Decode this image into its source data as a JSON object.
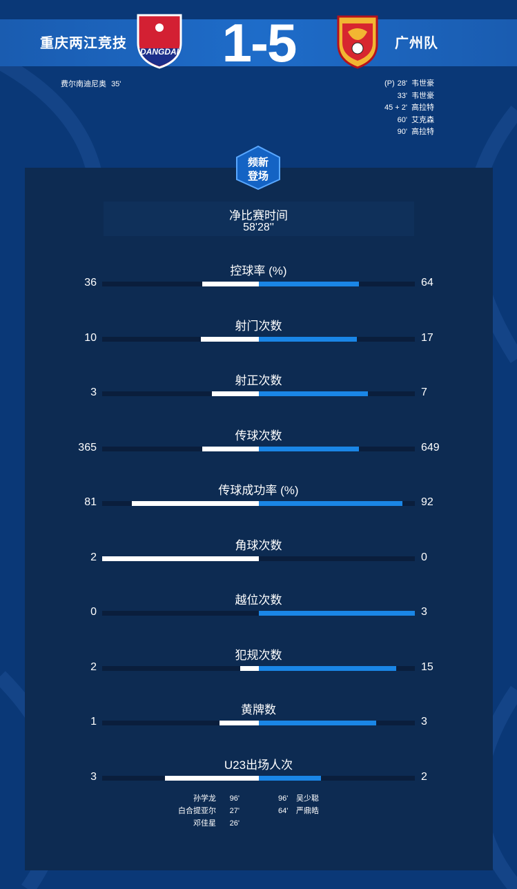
{
  "home": {
    "name": "重庆两江竞技",
    "logo_text": "DANGDAI",
    "scorers": [
      {
        "name": "费尔南迪尼奥",
        "minute": "35'"
      }
    ]
  },
  "away": {
    "name": "广州队",
    "scorers": [
      {
        "prefix": "(P)",
        "minute": "28'",
        "name": "韦世豪"
      },
      {
        "prefix": "",
        "minute": "33'",
        "name": "韦世豪"
      },
      {
        "prefix": "",
        "minute": "45 + 2'",
        "name": "高拉特"
      },
      {
        "prefix": "",
        "minute": "60'",
        "name": "艾克森"
      },
      {
        "prefix": "",
        "minute": "90'",
        "name": "高拉特"
      }
    ]
  },
  "score": "1-5",
  "badge": {
    "line1": "频新",
    "line2": "登场"
  },
  "net_time": {
    "label": "净比赛时间",
    "value": "58'28''"
  },
  "stats": [
    {
      "title": "控球率 (%)",
      "home": "36",
      "away": "64",
      "home_frac": 0.36,
      "away_frac": 0.64
    },
    {
      "title": "射门次数",
      "home": "10",
      "away": "17",
      "home_frac": 0.37,
      "away_frac": 0.63
    },
    {
      "title": "射正次数",
      "home": "3",
      "away": "7",
      "home_frac": 0.3,
      "away_frac": 0.7
    },
    {
      "title": "传球次数",
      "home": "365",
      "away": "649",
      "home_frac": 0.36,
      "away_frac": 0.64
    },
    {
      "title": "传球成功率 (%)",
      "home": "81",
      "away": "92",
      "home_frac": 0.81,
      "away_frac": 0.92
    },
    {
      "title": "角球次数",
      "home": "2",
      "away": "0",
      "home_frac": 1.0,
      "away_frac": 0.0
    },
    {
      "title": "越位次数",
      "home": "0",
      "away": "3",
      "home_frac": 0.0,
      "away_frac": 1.0
    },
    {
      "title": "犯规次数",
      "home": "2",
      "away": "15",
      "home_frac": 0.12,
      "away_frac": 0.88
    },
    {
      "title": "黄牌数",
      "home": "1",
      "away": "3",
      "home_frac": 0.25,
      "away_frac": 0.75
    },
    {
      "title": "U23出场人次",
      "home": "3",
      "away": "2",
      "home_frac": 0.6,
      "away_frac": 0.4
    }
  ],
  "u23": {
    "home": [
      {
        "name": "孙学龙",
        "minute": "96'"
      },
      {
        "name": "白合提亚尔",
        "minute": "27'"
      },
      {
        "name": "邓佳星",
        "minute": "26'"
      }
    ],
    "away": [
      {
        "minute": "96'",
        "name": "吴少聪"
      },
      {
        "minute": "64'",
        "name": "严鼎皓"
      }
    ]
  },
  "colors": {
    "home_bar": "#ffffff",
    "away_bar": "#1a86e6",
    "track": "#0a1e3c",
    "background": "#0a3877"
  }
}
